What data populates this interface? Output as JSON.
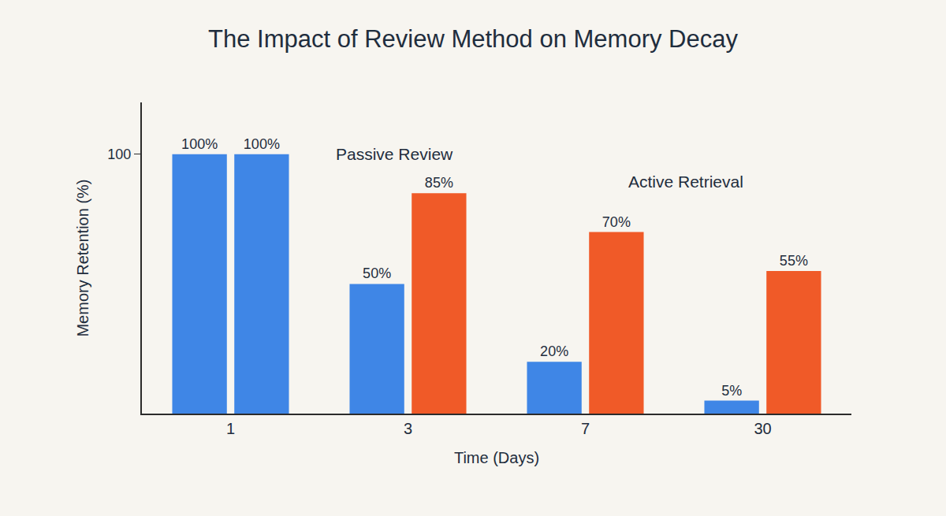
{
  "chart_data": {
    "type": "bar",
    "title": "The Impact of Review Method on Memory Decay",
    "x_label": "Time (Days)",
    "y_label": "Memory Retention (%)",
    "categories": [
      "1",
      "3",
      "7",
      "30"
    ],
    "series": [
      {
        "name": "Passive Review",
        "color": "#3f86e6",
        "values": [
          100,
          50,
          20,
          5
        ],
        "value_labels": [
          "100%",
          "50%",
          "20%",
          "5%"
        ]
      },
      {
        "name": "Active Retrieval",
        "color": "#f05a28",
        "colors": [
          "#3f86e6",
          "#f05a28",
          "#f05a28",
          "#f05a28"
        ],
        "values": [
          100,
          85,
          70,
          55
        ],
        "value_labels": [
          "100%",
          "85%",
          "70%",
          "55%"
        ]
      }
    ],
    "ylim": [
      0,
      120
    ],
    "yticks": [
      100
    ],
    "grid": false,
    "data_labels": true
  }
}
